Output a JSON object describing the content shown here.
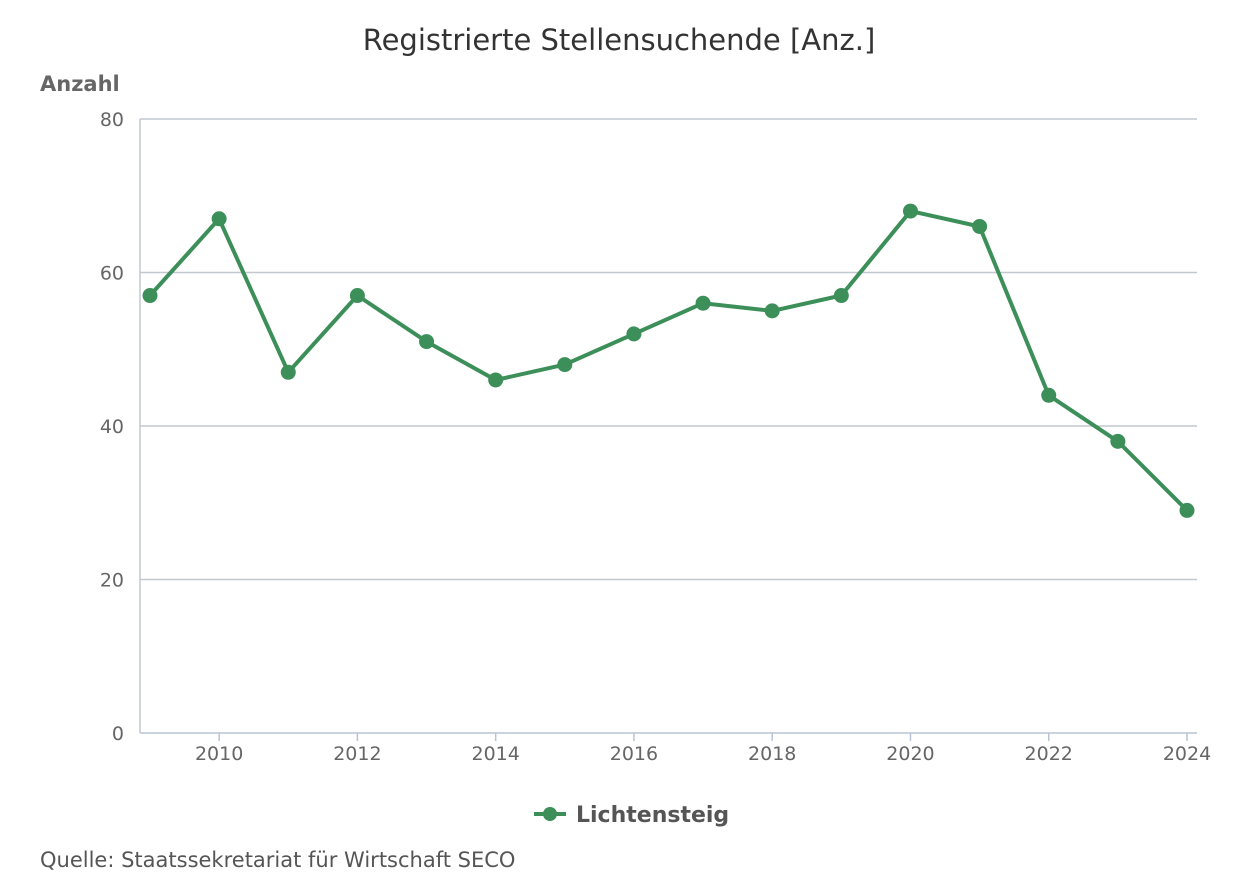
{
  "chart_data": {
    "type": "line",
    "title": "Registrierte Stellensuchende [Anz.]",
    "ylabel": "Anzahl",
    "xlabel": "",
    "ylim": [
      0,
      80
    ],
    "yticks": [
      0,
      20,
      40,
      60,
      80
    ],
    "xlim": [
      2009,
      2024
    ],
    "xticks": [
      2010,
      2012,
      2014,
      2016,
      2018,
      2020,
      2022,
      2024
    ],
    "grid": true,
    "legend_position": "bottom-center",
    "series": [
      {
        "name": "Lichtensteig",
        "color": "#3d8f5a",
        "x": [
          2009,
          2010,
          2011,
          2012,
          2013,
          2014,
          2015,
          2016,
          2017,
          2018,
          2019,
          2020,
          2021,
          2022,
          2023,
          2024
        ],
        "values": [
          57,
          67,
          47,
          57,
          51,
          46,
          48,
          52,
          56,
          55,
          57,
          68,
          66,
          44,
          38,
          29
        ]
      }
    ]
  },
  "source": "Quelle: Staatssekretariat für Wirtschaft SECO"
}
